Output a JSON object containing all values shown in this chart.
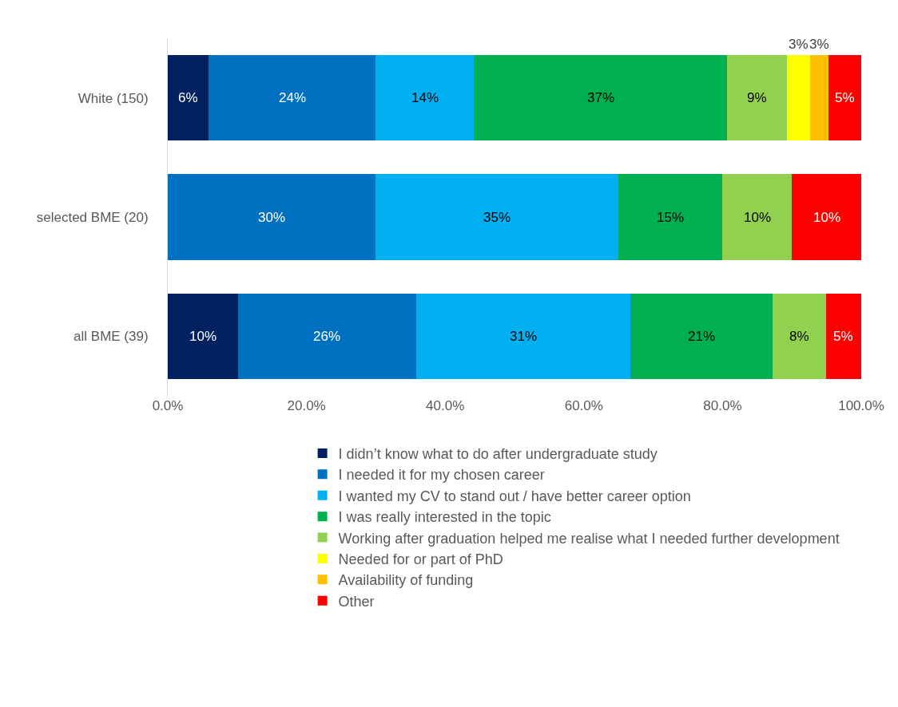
{
  "chart_data": {
    "type": "bar",
    "orientation": "horizontal",
    "stacked": true,
    "categories": [
      "White (150)",
      "selected BME (20)",
      "all BME (39)"
    ],
    "series": [
      {
        "name": "I didn’t know what to do after undergraduate study",
        "color": "#002060",
        "values": [
          5.9,
          null,
          10.1
        ],
        "value_labels": [
          "6%",
          null,
          "10%"
        ]
      },
      {
        "name": "I needed it for my chosen career",
        "color": "#0070c0",
        "values": [
          24.1,
          30,
          25.7
        ],
        "value_labels": [
          "24%",
          "30%",
          "26%"
        ]
      },
      {
        "name": "I wanted my CV to stand out / have better career option",
        "color": "#00b0f0",
        "values": [
          14.1,
          35,
          30.9
        ],
        "value_labels": [
          "14%",
          "35%",
          "31%"
        ]
      },
      {
        "name": "I was really interested in the topic",
        "color": "#00b050",
        "values": [
          36.6,
          15,
          20.5
        ],
        "value_labels": [
          "37%",
          "15%",
          "21%"
        ]
      },
      {
        "name": "Working after graduation helped me realise what I needed further development",
        "color": "#92d050",
        "values": [
          8.6,
          10,
          7.7
        ],
        "value_labels": [
          "9%",
          "10%",
          "8%"
        ]
      },
      {
        "name": "Needed for or part of PhD",
        "color": "#ffff00",
        "values": [
          3.3,
          null,
          null
        ],
        "value_labels": [
          "3%",
          null,
          null
        ]
      },
      {
        "name": "Availability of funding",
        "color": "#ffc000",
        "values": [
          2.7,
          null,
          null
        ],
        "value_labels": [
          "3%",
          null,
          null
        ]
      },
      {
        "name": "Other",
        "color": "#ff0000",
        "values": [
          4.7,
          10,
          5.1
        ],
        "value_labels": [
          "5%",
          "10%",
          "5%"
        ]
      }
    ],
    "xlim": [
      0,
      100
    ],
    "xticks": [
      {
        "value": 0,
        "label": "0.0%"
      },
      {
        "value": 20,
        "label": "20.0%"
      },
      {
        "value": 40,
        "label": "40.0%"
      },
      {
        "value": 60,
        "label": "60.0%"
      },
      {
        "value": 80,
        "label": "80.0%"
      },
      {
        "value": 100,
        "label": "100.0%"
      }
    ],
    "grid": false,
    "legend": "bottom"
  }
}
